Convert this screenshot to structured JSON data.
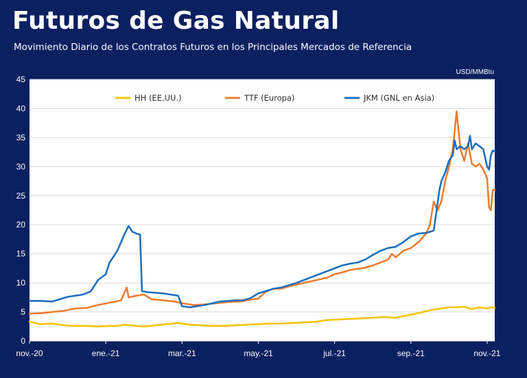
{
  "header": {
    "title": "Futuros de Gas Natural",
    "subtitle": "Movimiento Diario de los Contratos Futuros en los Principales Mercados de Referencia"
  },
  "colors": {
    "background": "#0b2060",
    "plot_background": "#ffffff",
    "hh": "#f5c400",
    "ttf": "#ed7d31",
    "jkm": "#1f6fc0"
  },
  "chart_data": {
    "type": "line",
    "title": "Futuros de Gas Natural",
    "subtitle": "Movimiento Diario de los Contratos Futuros en los Principales Mercados de Referencia",
    "unit_label": "USD/MMBtu",
    "x_unit": "months since start of nov.-20",
    "xlim": [
      0,
      12.2
    ],
    "ylim": [
      0,
      45
    ],
    "y_ticks": [
      0,
      5,
      10,
      15,
      20,
      25,
      30,
      35,
      40,
      45
    ],
    "x_tick_labels": [
      {
        "x": 0,
        "label": "nov.-20"
      },
      {
        "x": 2,
        "label": "ene.-21"
      },
      {
        "x": 4,
        "label": "mar.-21"
      },
      {
        "x": 6,
        "label": "may.-21"
      },
      {
        "x": 8,
        "label": "jul.-21"
      },
      {
        "x": 10,
        "label": "sep.-21"
      },
      {
        "x": 12,
        "label": "nov.-21"
      }
    ],
    "grid": "horizontal",
    "legend_position": "top",
    "series": [
      {
        "name": "HH (EE.UU.)",
        "color": "#f5c400",
        "points": [
          [
            0,
            3.3
          ],
          [
            0.3,
            2.9
          ],
          [
            0.6,
            3.0
          ],
          [
            0.9,
            2.7
          ],
          [
            1.2,
            2.6
          ],
          [
            1.5,
            2.6
          ],
          [
            1.8,
            2.5
          ],
          [
            2.1,
            2.6
          ],
          [
            2.3,
            2.6
          ],
          [
            2.5,
            2.8
          ],
          [
            2.8,
            2.6
          ],
          [
            3.0,
            2.5
          ],
          [
            3.3,
            2.7
          ],
          [
            3.6,
            2.9
          ],
          [
            3.9,
            3.1
          ],
          [
            4.2,
            2.8
          ],
          [
            4.5,
            2.7
          ],
          [
            4.8,
            2.6
          ],
          [
            5.1,
            2.6
          ],
          [
            5.4,
            2.7
          ],
          [
            5.7,
            2.8
          ],
          [
            6.0,
            2.9
          ],
          [
            6.3,
            3.0
          ],
          [
            6.6,
            3.0
          ],
          [
            6.9,
            3.1
          ],
          [
            7.2,
            3.2
          ],
          [
            7.5,
            3.3
          ],
          [
            7.8,
            3.6
          ],
          [
            8.1,
            3.7
          ],
          [
            8.4,
            3.8
          ],
          [
            8.7,
            3.9
          ],
          [
            9.0,
            4.0
          ],
          [
            9.3,
            4.1
          ],
          [
            9.6,
            4.0
          ],
          [
            9.9,
            4.4
          ],
          [
            10.2,
            4.8
          ],
          [
            10.5,
            5.3
          ],
          [
            10.8,
            5.6
          ],
          [
            11.0,
            5.8
          ],
          [
            11.2,
            5.8
          ],
          [
            11.4,
            5.9
          ],
          [
            11.6,
            5.5
          ],
          [
            11.8,
            5.8
          ],
          [
            12.0,
            5.6
          ],
          [
            12.1,
            5.8
          ],
          [
            12.2,
            5.7
          ]
        ]
      },
      {
        "name": "TTF (Europa)",
        "color": "#ed7d31",
        "points": [
          [
            0,
            4.7
          ],
          [
            0.3,
            4.8
          ],
          [
            0.6,
            5.0
          ],
          [
            0.9,
            5.2
          ],
          [
            1.2,
            5.6
          ],
          [
            1.5,
            5.7
          ],
          [
            1.8,
            6.2
          ],
          [
            2.1,
            6.6
          ],
          [
            2.4,
            7.0
          ],
          [
            2.55,
            9.2
          ],
          [
            2.6,
            7.5
          ],
          [
            2.8,
            7.8
          ],
          [
            3.0,
            8.0
          ],
          [
            3.2,
            7.2
          ],
          [
            3.5,
            7.0
          ],
          [
            3.8,
            6.8
          ],
          [
            4.0,
            6.5
          ],
          [
            4.3,
            6.2
          ],
          [
            4.6,
            6.3
          ],
          [
            4.9,
            6.5
          ],
          [
            5.2,
            6.7
          ],
          [
            5.5,
            6.8
          ],
          [
            5.8,
            7.1
          ],
          [
            6.0,
            7.3
          ],
          [
            6.2,
            8.5
          ],
          [
            6.4,
            9.0
          ],
          [
            6.6,
            9.0
          ],
          [
            6.8,
            9.4
          ],
          [
            7.0,
            9.7
          ],
          [
            7.2,
            10.0
          ],
          [
            7.4,
            10.3
          ],
          [
            7.6,
            10.6
          ],
          [
            7.8,
            10.9
          ],
          [
            8.0,
            11.5
          ],
          [
            8.2,
            11.8
          ],
          [
            8.4,
            12.2
          ],
          [
            8.6,
            12.4
          ],
          [
            8.8,
            12.6
          ],
          [
            9.0,
            13.0
          ],
          [
            9.2,
            13.5
          ],
          [
            9.4,
            14.0
          ],
          [
            9.5,
            15.0
          ],
          [
            9.6,
            14.4
          ],
          [
            9.8,
            15.5
          ],
          [
            10.0,
            16.0
          ],
          [
            10.2,
            17.0
          ],
          [
            10.4,
            18.5
          ],
          [
            10.5,
            20.0
          ],
          [
            10.6,
            24.0
          ],
          [
            10.7,
            22.5
          ],
          [
            10.8,
            24.0
          ],
          [
            10.9,
            27.5
          ],
          [
            11.0,
            30.0
          ],
          [
            11.1,
            33.0
          ],
          [
            11.2,
            39.5
          ],
          [
            11.3,
            33.0
          ],
          [
            11.4,
            31.0
          ],
          [
            11.5,
            34.0
          ],
          [
            11.6,
            30.5
          ],
          [
            11.7,
            30.0
          ],
          [
            11.8,
            30.5
          ],
          [
            11.9,
            29.5
          ],
          [
            12.0,
            28.0
          ],
          [
            12.05,
            23.0
          ],
          [
            12.1,
            22.5
          ],
          [
            12.15,
            26.0
          ],
          [
            12.2,
            26.0
          ]
        ]
      },
      {
        "name": "JKM (GNL en Asia)",
        "color": "#1f6fc0",
        "points": [
          [
            0,
            6.9
          ],
          [
            0.3,
            6.9
          ],
          [
            0.6,
            6.8
          ],
          [
            0.8,
            7.2
          ],
          [
            1.0,
            7.6
          ],
          [
            1.2,
            7.8
          ],
          [
            1.4,
            8.0
          ],
          [
            1.6,
            8.5
          ],
          [
            1.8,
            10.5
          ],
          [
            2.0,
            11.5
          ],
          [
            2.1,
            13.5
          ],
          [
            2.2,
            14.5
          ],
          [
            2.3,
            15.5
          ],
          [
            2.4,
            17.0
          ],
          [
            2.5,
            18.5
          ],
          [
            2.6,
            19.8
          ],
          [
            2.7,
            18.8
          ],
          [
            2.8,
            18.5
          ],
          [
            2.9,
            18.3
          ],
          [
            2.95,
            8.6
          ],
          [
            3.1,
            8.4
          ],
          [
            3.3,
            8.3
          ],
          [
            3.5,
            8.2
          ],
          [
            3.7,
            8.0
          ],
          [
            3.9,
            7.8
          ],
          [
            4.0,
            6.0
          ],
          [
            4.2,
            5.8
          ],
          [
            4.4,
            6.0
          ],
          [
            4.6,
            6.2
          ],
          [
            4.8,
            6.5
          ],
          [
            5.0,
            6.8
          ],
          [
            5.2,
            6.9
          ],
          [
            5.4,
            7.0
          ],
          [
            5.6,
            7.0
          ],
          [
            5.8,
            7.4
          ],
          [
            6.0,
            8.2
          ],
          [
            6.2,
            8.6
          ],
          [
            6.4,
            9.0
          ],
          [
            6.6,
            9.2
          ],
          [
            6.8,
            9.6
          ],
          [
            7.0,
            10.0
          ],
          [
            7.2,
            10.5
          ],
          [
            7.4,
            11.0
          ],
          [
            7.6,
            11.5
          ],
          [
            7.8,
            12.0
          ],
          [
            8.0,
            12.5
          ],
          [
            8.2,
            13.0
          ],
          [
            8.4,
            13.3
          ],
          [
            8.6,
            13.5
          ],
          [
            8.8,
            14.0
          ],
          [
            9.0,
            14.8
          ],
          [
            9.2,
            15.5
          ],
          [
            9.4,
            16.0
          ],
          [
            9.6,
            16.2
          ],
          [
            9.8,
            17.0
          ],
          [
            10.0,
            18.0
          ],
          [
            10.2,
            18.5
          ],
          [
            10.4,
            18.6
          ],
          [
            10.6,
            19.0
          ],
          [
            10.75,
            26.0
          ],
          [
            10.8,
            27.5
          ],
          [
            10.9,
            29.0
          ],
          [
            11.0,
            31.0
          ],
          [
            11.1,
            32.0
          ],
          [
            11.15,
            34.5
          ],
          [
            11.2,
            33.0
          ],
          [
            11.3,
            33.5
          ],
          [
            11.4,
            33.0
          ],
          [
            11.5,
            33.5
          ],
          [
            11.55,
            35.3
          ],
          [
            11.6,
            33.0
          ],
          [
            11.7,
            34.0
          ],
          [
            11.8,
            33.5
          ],
          [
            11.9,
            33.0
          ],
          [
            12.0,
            30.0
          ],
          [
            12.05,
            29.5
          ],
          [
            12.1,
            32.0
          ],
          [
            12.15,
            32.8
          ],
          [
            12.2,
            32.6
          ]
        ]
      }
    ]
  }
}
